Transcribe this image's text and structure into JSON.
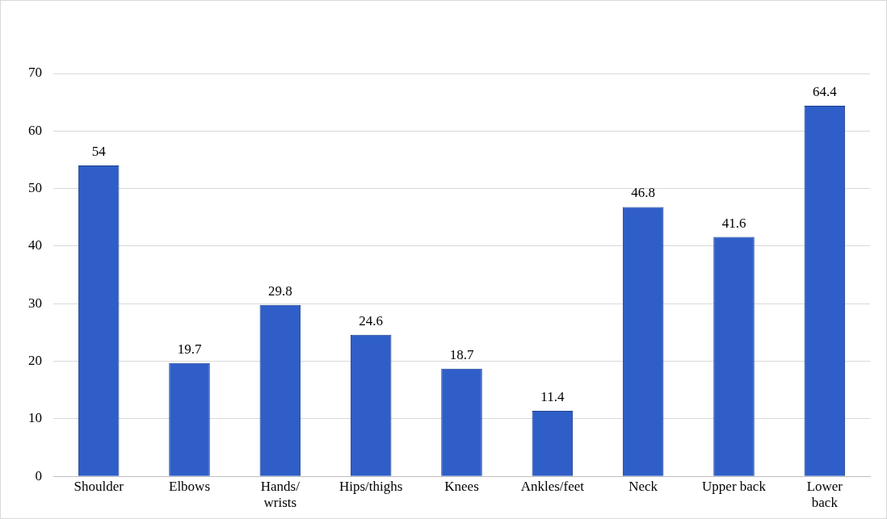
{
  "chart_data": {
    "type": "bar",
    "categories": [
      "Shoulder",
      "Elbows",
      "Hands/\nwrists",
      "Hips/thighs",
      "Knees",
      "Ankles/feet",
      "Neck",
      "Upper back",
      "Lower\nback"
    ],
    "values": [
      54,
      19.7,
      29.8,
      24.6,
      18.7,
      11.4,
      46.8,
      41.6,
      64.4
    ],
    "color": "#2f5ec8",
    "ylim": [
      0,
      70
    ],
    "yticks": [
      0,
      10,
      20,
      30,
      40,
      50,
      60,
      70
    ],
    "grid": "y",
    "data_labels": true,
    "legend": false
  }
}
